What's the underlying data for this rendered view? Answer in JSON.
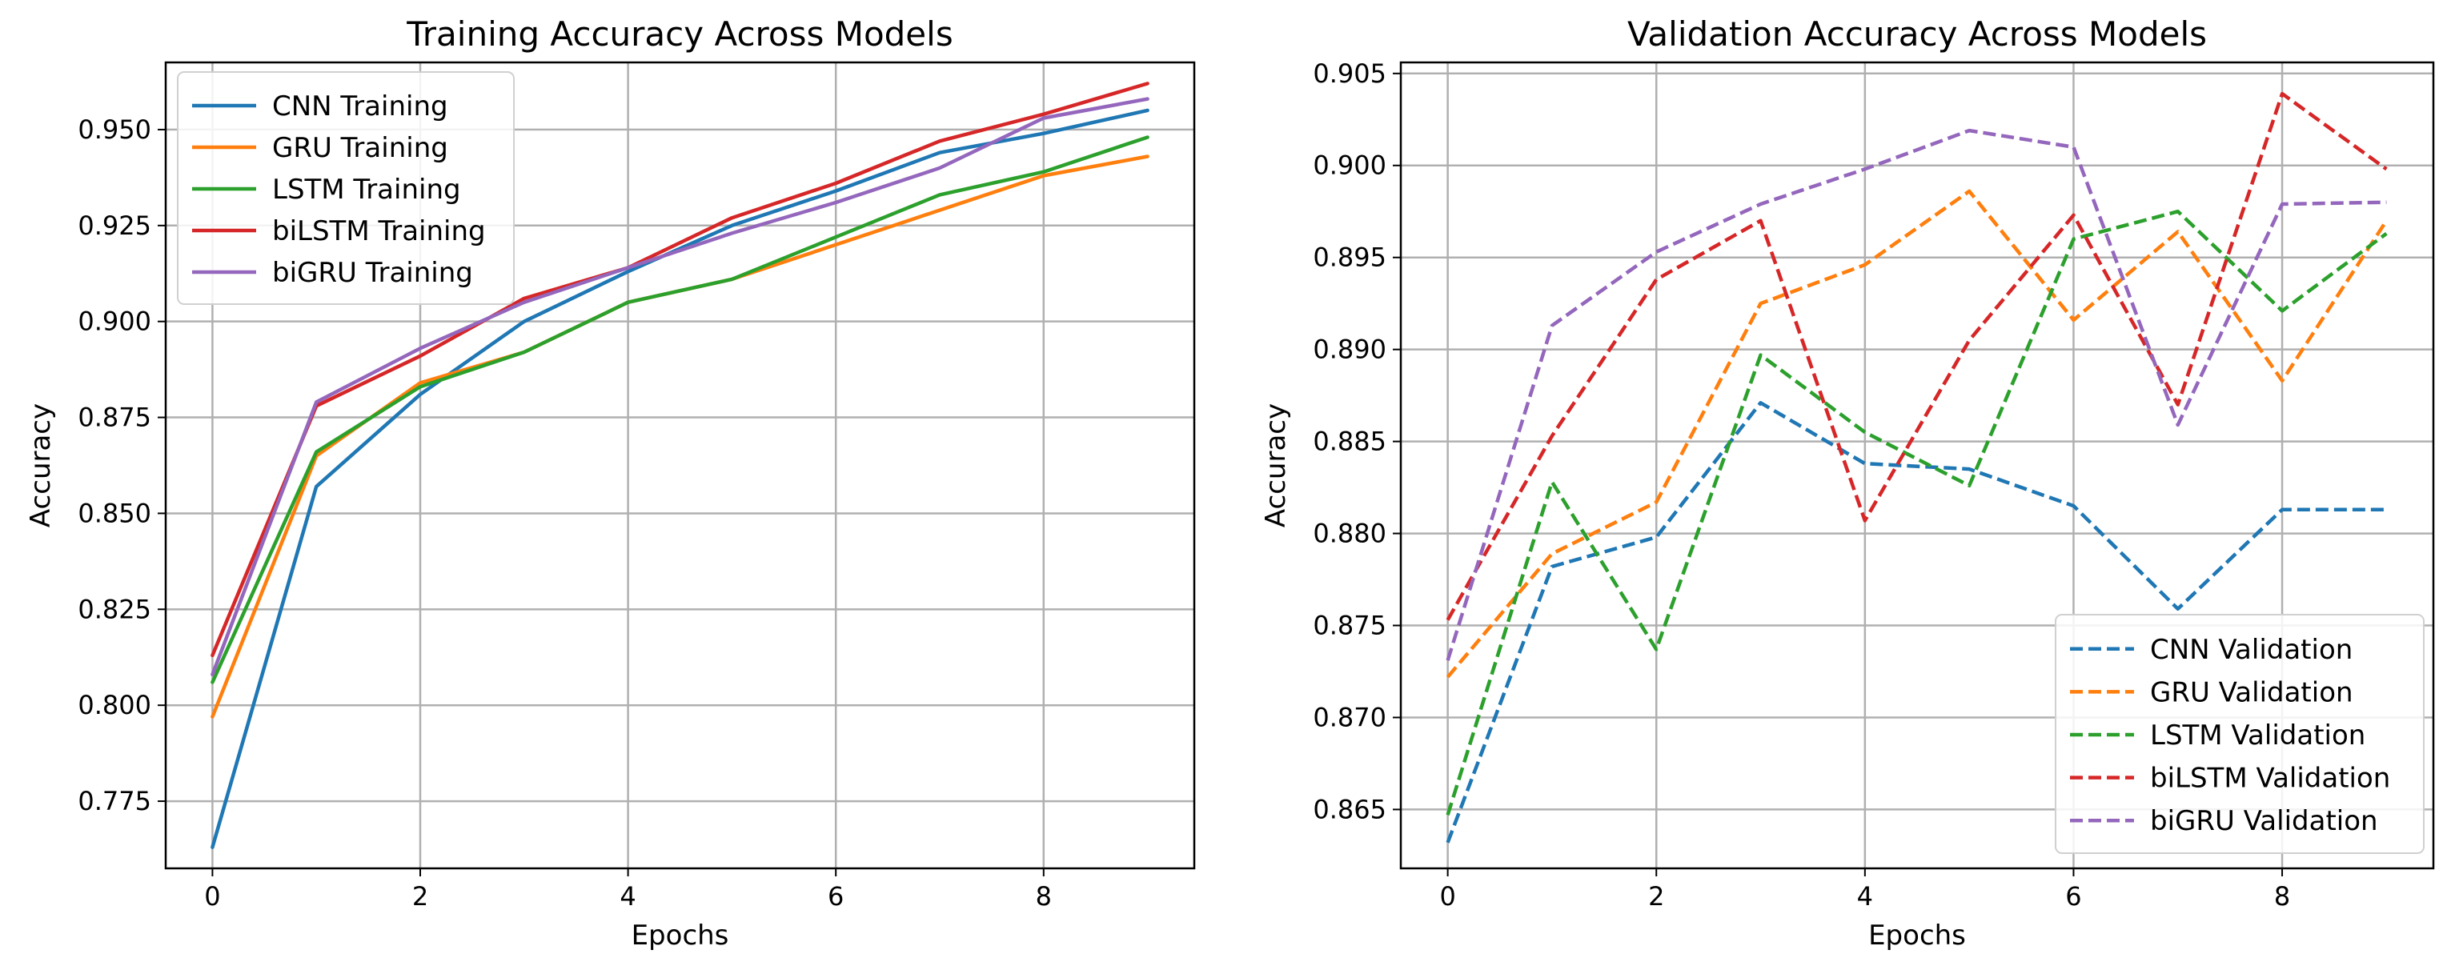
{
  "chart_data": [
    {
      "type": "line",
      "title": "Training Accuracy Across Models",
      "xlabel": "Epochs",
      "ylabel": "Accuracy",
      "x": [
        0,
        1,
        2,
        3,
        4,
        5,
        6,
        7,
        8,
        9
      ],
      "xlim": [
        -0.45,
        9.45
      ],
      "ylim": [
        0.7575,
        0.9675
      ],
      "xticks": [
        0,
        2,
        4,
        6,
        8
      ],
      "xtick_labels": [
        "0",
        "2",
        "4",
        "6",
        "8"
      ],
      "yticks": [
        0.775,
        0.8,
        0.825,
        0.85,
        0.875,
        0.9,
        0.925,
        0.95
      ],
      "ytick_labels": [
        "0.775",
        "0.800",
        "0.825",
        "0.850",
        "0.875",
        "0.900",
        "0.925",
        "0.950"
      ],
      "grid": true,
      "legend_position": "upper-left",
      "line_style": "solid",
      "series": [
        {
          "name": "CNN Training",
          "color": "#1f77b4",
          "values": [
            0.763,
            0.857,
            0.881,
            0.9,
            0.913,
            0.925,
            0.934,
            0.944,
            0.949,
            0.955
          ]
        },
        {
          "name": "GRU Training",
          "color": "#ff7f0e",
          "values": [
            0.797,
            0.865,
            0.884,
            0.892,
            0.905,
            0.911,
            0.92,
            0.929,
            0.938,
            0.943
          ]
        },
        {
          "name": "LSTM Training",
          "color": "#2ca02c",
          "values": [
            0.806,
            0.866,
            0.883,
            0.892,
            0.905,
            0.911,
            0.922,
            0.933,
            0.939,
            0.948
          ]
        },
        {
          "name": "biLSTM Training",
          "color": "#d62728",
          "values": [
            0.813,
            0.878,
            0.891,
            0.906,
            0.914,
            0.927,
            0.936,
            0.947,
            0.954,
            0.962
          ]
        },
        {
          "name": "biGRU Training",
          "color": "#9467bd",
          "values": [
            0.808,
            0.879,
            0.893,
            0.905,
            0.914,
            0.923,
            0.931,
            0.94,
            0.953,
            0.958
          ]
        }
      ]
    },
    {
      "type": "line",
      "title": "Validation Accuracy Across Models",
      "xlabel": "Epochs",
      "ylabel": "Accuracy",
      "x": [
        0,
        1,
        2,
        3,
        4,
        5,
        6,
        7,
        8,
        9
      ],
      "xlim": [
        -0.45,
        9.45
      ],
      "ylim": [
        0.8618,
        0.9056
      ],
      "xticks": [
        0,
        2,
        4,
        6,
        8
      ],
      "xtick_labels": [
        "0",
        "2",
        "4",
        "6",
        "8"
      ],
      "yticks": [
        0.865,
        0.87,
        0.875,
        0.88,
        0.885,
        0.89,
        0.895,
        0.9,
        0.905
      ],
      "ytick_labels": [
        "0.865",
        "0.870",
        "0.875",
        "0.880",
        "0.885",
        "0.890",
        "0.895",
        "0.900",
        "0.905"
      ],
      "grid": true,
      "legend_position": "lower-right",
      "line_style": "dashed",
      "series": [
        {
          "name": "CNN Validation",
          "color": "#1f77b4",
          "values": [
            0.8632,
            0.8782,
            0.8798,
            0.8871,
            0.8838,
            0.8835,
            0.8815,
            0.8759,
            0.8813,
            0.8813
          ]
        },
        {
          "name": "GRU Validation",
          "color": "#ff7f0e",
          "values": [
            0.8722,
            0.8789,
            0.8817,
            0.8925,
            0.8946,
            0.8986,
            0.8916,
            0.8964,
            0.8883,
            0.897
          ]
        },
        {
          "name": "LSTM Validation",
          "color": "#2ca02c",
          "values": [
            0.8647,
            0.8828,
            0.8737,
            0.8897,
            0.8855,
            0.8826,
            0.896,
            0.8975,
            0.8921,
            0.8963
          ]
        },
        {
          "name": "biLSTM Validation",
          "color": "#d62728",
          "values": [
            0.8753,
            0.8853,
            0.8938,
            0.897,
            0.8807,
            0.8905,
            0.8973,
            0.887,
            0.9039,
            0.8998
          ]
        },
        {
          "name": "biGRU Validation",
          "color": "#9467bd",
          "values": [
            0.8731,
            0.8913,
            0.8953,
            0.8979,
            0.8998,
            0.9019,
            0.901,
            0.8859,
            0.8979,
            0.898
          ]
        }
      ]
    }
  ]
}
